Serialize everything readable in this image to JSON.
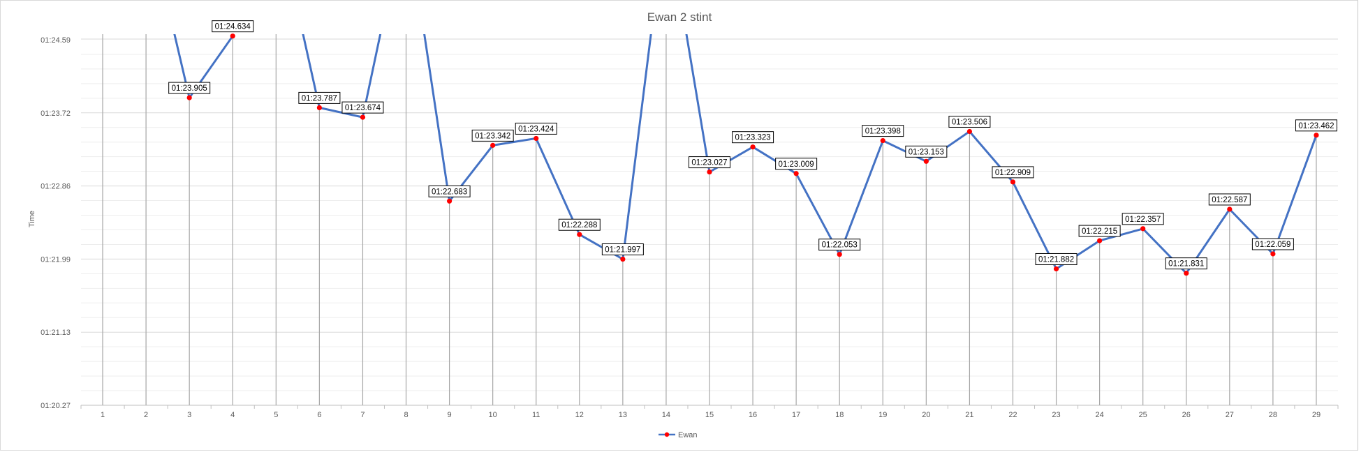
{
  "chart_data": {
    "type": "line",
    "title": "Ewan 2 stint",
    "xlabel": "",
    "ylabel": "Time",
    "ylim_seconds": [
      80.27,
      84.59
    ],
    "y_ticks": [
      "01:20.27",
      "01:21.13",
      "01:21.99",
      "01:22.86",
      "01:23.72",
      "01:24.59"
    ],
    "categories": [
      "1",
      "2",
      "3",
      "4",
      "5",
      "6",
      "7",
      "8",
      "9",
      "10",
      "11",
      "12",
      "13",
      "14",
      "15",
      "16",
      "17",
      "18",
      "19",
      "20",
      "21",
      "22",
      "23",
      "24",
      "25",
      "26",
      "27",
      "28",
      "29"
    ],
    "grid": true,
    "legend_position": "bottom",
    "series": [
      {
        "name": "Ewan",
        "color": "#4472C4",
        "marker_color": "#FF0000",
        "values": [
          null,
          null,
          83.905,
          84.634,
          null,
          83.787,
          83.674,
          null,
          82.683,
          83.342,
          83.424,
          82.288,
          81.997,
          null,
          83.027,
          83.323,
          83.009,
          82.053,
          83.398,
          83.153,
          83.506,
          82.909,
          81.882,
          82.215,
          82.357,
          81.831,
          82.587,
          82.059,
          83.462
        ],
        "labels": [
          "",
          "",
          "01:23.905",
          "01:24.634",
          "",
          "01:23.787",
          "01:23.674",
          "",
          "01:22.683",
          "01:23.342",
          "01:23.424",
          "01:22.288",
          "01:21.997",
          "",
          "01:23.027",
          "01:23.323",
          "01:23.009",
          "01:22.053",
          "01:23.398",
          "01:23.153",
          "01:23.506",
          "01:22.909",
          "01:21.882",
          "01:22.215",
          "01:22.357",
          "01:21.831",
          "01:22.587",
          "01:22.059",
          "01:23.462"
        ]
      }
    ]
  }
}
